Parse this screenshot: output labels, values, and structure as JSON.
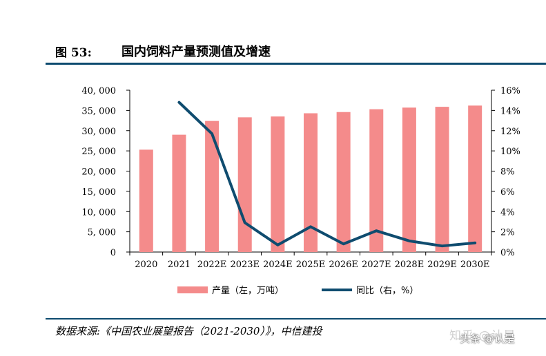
{
  "figure": {
    "label": "图 53:",
    "title": "国内饲料产量预测值及增速"
  },
  "source": "数据来源:《中国农业展望报告（2021-2030）》，中信建投",
  "watermark": {
    "line1": "知乎 @认是",
    "line2": "头条 @认是"
  },
  "colors": {
    "bar": "#f48b8b",
    "line": "#0f4c6f",
    "rule": "#0c4a6e"
  },
  "chart_data": {
    "type": "bar",
    "categories": [
      "2020",
      "2021",
      "2022E",
      "2023E",
      "2024E",
      "2025E",
      "2026E",
      "2027E",
      "2028E",
      "2029E",
      "2030E"
    ],
    "series": [
      {
        "name": "产量（左，万吨）",
        "type": "bar",
        "axis": "left",
        "values": [
          25300,
          29000,
          32400,
          33300,
          33500,
          34300,
          34600,
          35300,
          35700,
          35900,
          36200
        ]
      },
      {
        "name": "同比（右，%）",
        "type": "line",
        "axis": "right",
        "values": [
          null,
          14.8,
          11.7,
          2.9,
          0.7,
          2.5,
          0.8,
          2.1,
          1.1,
          0.6,
          0.9
        ]
      }
    ],
    "left_axis": {
      "ylim": [
        0,
        40000
      ],
      "ticks": [
        "0",
        "5, 000",
        "10, 000",
        "15, 000",
        "20, 000",
        "25, 000",
        "30, 000",
        "35, 000",
        "40, 000"
      ]
    },
    "right_axis": {
      "ylim": [
        0,
        16
      ],
      "ticks": [
        "0%",
        "2%",
        "4%",
        "6%",
        "8%",
        "10%",
        "12%",
        "14%",
        "16%"
      ]
    },
    "legend_position": "bottom",
    "grid": false
  }
}
